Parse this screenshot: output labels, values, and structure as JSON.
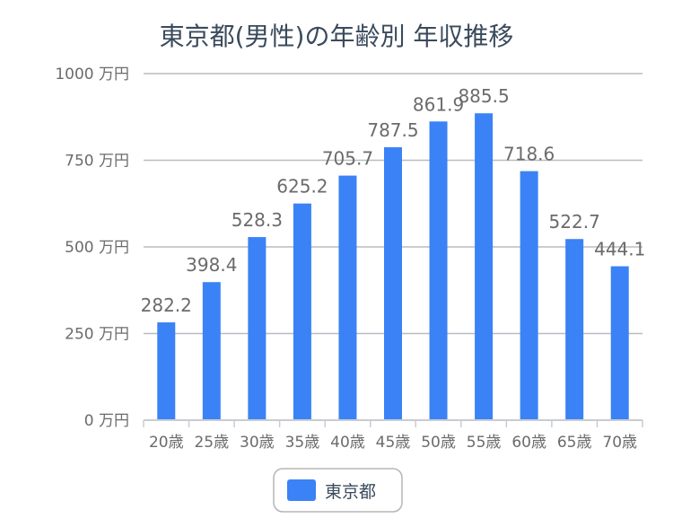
{
  "chart_data": {
    "type": "bar",
    "title": "東京都(男性)の年齢別 年収推移",
    "categories": [
      "20歳",
      "25歳",
      "30歳",
      "35歳",
      "40歳",
      "45歳",
      "50歳",
      "55歳",
      "60歳",
      "65歳",
      "70歳"
    ],
    "series": [
      {
        "name": "東京都",
        "color": "#3b82f6",
        "values": [
          282.2,
          398.4,
          528.3,
          625.2,
          705.7,
          787.5,
          861.9,
          885.5,
          718.6,
          522.7,
          444.1
        ],
        "labels": [
          "282.2",
          "398.4",
          "528.3",
          "625.2",
          "705.7",
          "787.5",
          "861.9",
          "885.5",
          "718.6",
          "522.7",
          "444.1"
        ]
      }
    ],
    "y_ticks": [
      {
        "value": 0,
        "label": "0 万円"
      },
      {
        "value": 250,
        "label": "250 万円"
      },
      {
        "value": 500,
        "label": "500 万円"
      },
      {
        "value": 750,
        "label": "750 万円"
      },
      {
        "value": 1000,
        "label": "1000 万円"
      }
    ],
    "ylim": [
      0,
      1000
    ],
    "grid": true,
    "legend_position": "bottom"
  }
}
